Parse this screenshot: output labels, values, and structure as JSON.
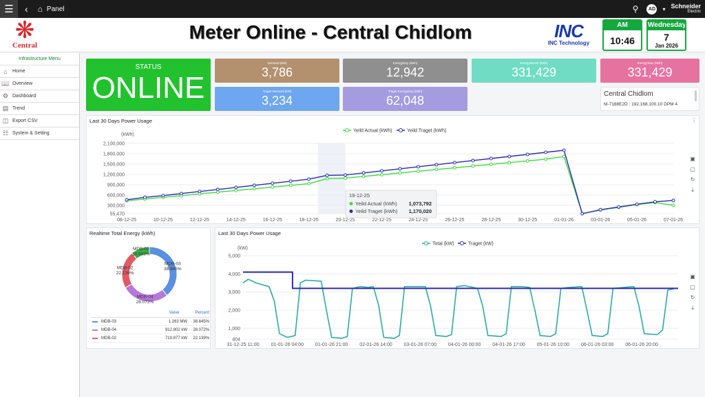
{
  "topbar": {
    "menu_icon": "hamburger-icon",
    "back_icon": "chevron-left-icon",
    "home_icon": "home-icon",
    "panel_label": "Panel",
    "avatar": "AD",
    "brand_line1": "Schneider",
    "brand_line2": "Electric"
  },
  "header": {
    "logo_text": "Central",
    "title": "Meter Online - Central Chidlom",
    "inc_logo": "INC",
    "inc_text": "INC Technology",
    "time": {
      "period": "AM",
      "value": "10:46"
    },
    "date": {
      "weekday": "Wednesday",
      "day": "7",
      "month_year": "Jan 2026"
    }
  },
  "sidebar": {
    "title": "Infrastructure Menu",
    "items": [
      {
        "label": "Home",
        "icon": "home-icon"
      },
      {
        "label": "Overview",
        "icon": "book-icon"
      },
      {
        "label": "Dashboard",
        "icon": "dashboard-icon"
      },
      {
        "label": "Trend",
        "icon": "trend-icon"
      },
      {
        "label": "Export CSV",
        "icon": "file-icon"
      },
      {
        "label": "System & Setting",
        "icon": "network-icon"
      }
    ]
  },
  "status": {
    "label": "STATUS",
    "value": "ONLINE",
    "color": "#22c22e"
  },
  "kpis": [
    {
      "label": "Demand (kW)",
      "value": "3,786",
      "color": "#b3916f"
    },
    {
      "label": "EnergyDay (kWh)",
      "value": "12,942",
      "color": "#8f8f8f"
    },
    {
      "label": "EnergyMonth (kWh)",
      "value": "331,429",
      "color": "#6fdcc3"
    },
    {
      "label": "EnergyYear (kWh)",
      "value": "331,429",
      "color": "#e6739f"
    },
    {
      "label": "Traget Demand (kW)",
      "value": "3,234",
      "color": "#6ea6ef"
    },
    {
      "label": "Traget EnergyDay (kWh)",
      "value": "62,048",
      "color": "#a59be0"
    }
  ],
  "info": {
    "title": "Central Chidlom",
    "subtitle": "M-7188E2D : 192.168.100.10 DPM 4"
  },
  "chart1": {
    "title": "Last 30 Days Power Usage"
  },
  "chart2": {
    "title": "Realtime Total Energy (kWh)",
    "table": {
      "header_value": "Value",
      "header_percent": "Percent",
      "rows": [
        {
          "name": "MDB-03",
          "value": "1.263 MW",
          "percent": "38.845%",
          "color": "#5b8fdf"
        },
        {
          "name": "MDB-04",
          "value": "912.802 kW",
          "percent": "28.072%",
          "color": "#b679d9"
        },
        {
          "name": "MDB-02",
          "value": "719.877 kW",
          "percent": "22.139%",
          "color": "#e05a65"
        }
      ]
    }
  },
  "chart3": {
    "title": "Last 30 Days Power Usage"
  },
  "chart_data": [
    {
      "type": "line",
      "title": "",
      "ylabel": "(kWh)",
      "ylim": [
        55470,
        2100000
      ],
      "ytick_labels": [
        "55,470",
        "300,000",
        "600,000",
        "900,000",
        "1,200,000",
        "1,500,000",
        "1,800,000",
        "2,100,000"
      ],
      "ytick_values": [
        55470,
        300000,
        600000,
        900000,
        1200000,
        1500000,
        1800000,
        2100000
      ],
      "x": [
        "08-12-25",
        "09-12-25",
        "10-12-25",
        "11-12-25",
        "12-12-25",
        "13-12-25",
        "14-12-25",
        "15-12-25",
        "16-12-25",
        "17-12-25",
        "18-12-25",
        "19-12-25",
        "20-12-25",
        "21-12-25",
        "22-12-25",
        "23-12-25",
        "24-12-25",
        "25-12-25",
        "26-12-25",
        "27-12-25",
        "28-12-25",
        "29-12-25",
        "30-12-25",
        "31-12-25",
        "01-01-26",
        "02-01-26",
        "03-01-26",
        "04-01-26",
        "05-01-26",
        "06-01-26",
        "07-01-26"
      ],
      "xtick_labels": [
        "08-12-25",
        "10-12-25",
        "12-12-25",
        "14-12-25",
        "16-12-25",
        "18-12-25",
        "20-12-25",
        "22-12-25",
        "24-12-25",
        "26-12-25",
        "28-12-25",
        "30-12-25",
        "01-01-26",
        "03-01-26",
        "05-01-26",
        "07-01-26"
      ],
      "series": [
        {
          "name": "Yeild Actual (kWh)",
          "color": "#3ddc3d",
          "values": [
            430000,
            480000,
            530000,
            580000,
            630000,
            680000,
            730000,
            780000,
            830000,
            880000,
            930000,
            1073792,
            1090000,
            1140000,
            1190000,
            1240000,
            1290000,
            1340000,
            1390000,
            1440000,
            1490000,
            1540000,
            1590000,
            1640000,
            1720000,
            55470,
            160000,
            240000,
            320000,
            380000,
            300000
          ]
        },
        {
          "name": "Yeild Traget (kWh)",
          "color": "#2b2bb0",
          "values": [
            460000,
            530000,
            580000,
            640000,
            700000,
            760000,
            820000,
            880000,
            940000,
            1000000,
            1060000,
            1170020,
            1180000,
            1240000,
            1300000,
            1360000,
            1420000,
            1480000,
            1540000,
            1600000,
            1660000,
            1720000,
            1780000,
            1840000,
            1900000,
            55470,
            170000,
            250000,
            330000,
            400000,
            440000
          ]
        }
      ],
      "tooltip": {
        "date": "19-12-25",
        "rows": [
          {
            "name": "Yeild Actual (kWh)",
            "value": "1,073,792"
          },
          {
            "name": "Yeild Traget (kWh)",
            "value": "1,170,020"
          }
        ]
      },
      "legend": "top-center",
      "grid": true
    },
    {
      "type": "pie",
      "title": "",
      "slices": [
        {
          "label": "MDB-03",
          "percent": 38.845,
          "color": "#5b8fdf"
        },
        {
          "label": "MDB-04",
          "percent": 28.072,
          "color": "#b679d9"
        },
        {
          "label": "MDB-02",
          "percent": 22.139,
          "color": "#e05a65"
        },
        {
          "label": "MDB-01",
          "percent": 10.943,
          "color": "#3aae44"
        }
      ],
      "slice_labels": [
        {
          "name": "MDB-01",
          "pct": "10.943%"
        },
        {
          "name": "MDB-02",
          "pct": "22.139%"
        },
        {
          "name": "MDB-03",
          "pct": "38.845%"
        },
        {
          "name": "MDB-04",
          "pct": "28.072%"
        }
      ],
      "donut": true
    },
    {
      "type": "line",
      "title": "",
      "ylabel": "(kW)",
      "ylim": [
        404,
        5000
      ],
      "ytick_labels": [
        "404",
        "1,000",
        "2,000",
        "3,000",
        "4,000",
        "5,000"
      ],
      "ytick_values": [
        404,
        1000,
        2000,
        3000,
        4000,
        5000
      ],
      "xtick_labels": [
        "31-12-25 11:00",
        "01-01-26 04:00",
        "01-01-26 21:00",
        "02-01-26 14:00",
        "03-01-26 07:00",
        "04-01-26 00:00",
        "04-01-26 17:00",
        "05-01-26 10:00",
        "06-01-26 03:00",
        "06-01-26 20:00"
      ],
      "x_hours": [
        0,
        17,
        34,
        51,
        68,
        85,
        102,
        119,
        136,
        153
      ],
      "x_max_hours": 167,
      "series": [
        {
          "name": "Total (kW)",
          "color": "#2aa9a4",
          "points": [
            [
              0,
              3500
            ],
            [
              2,
              3700
            ],
            [
              5,
              3500
            ],
            [
              10,
              3300
            ],
            [
              12,
              2500
            ],
            [
              14,
              700
            ],
            [
              17,
              500
            ],
            [
              20,
              600
            ],
            [
              22,
              3500
            ],
            [
              24,
              3650
            ],
            [
              30,
              3600
            ],
            [
              32,
              2000
            ],
            [
              34,
              500
            ],
            [
              38,
              450
            ],
            [
              40,
              550
            ],
            [
              42,
              3200
            ],
            [
              45,
              3300
            ],
            [
              48,
              3250
            ],
            [
              50,
              3300
            ],
            [
              52,
              2300
            ],
            [
              54,
              500
            ],
            [
              58,
              450
            ],
            [
              60,
              600
            ],
            [
              62,
              3300
            ],
            [
              66,
              3300
            ],
            [
              70,
              3300
            ],
            [
              72,
              2200
            ],
            [
              74,
              600
            ],
            [
              78,
              550
            ],
            [
              80,
              650
            ],
            [
              82,
              3300
            ],
            [
              85,
              3350
            ],
            [
              90,
              3200
            ],
            [
              92,
              2200
            ],
            [
              94,
              600
            ],
            [
              99,
              550
            ],
            [
              101,
              700
            ],
            [
              103,
              3300
            ],
            [
              107,
              3300
            ],
            [
              110,
              3250
            ],
            [
              112,
              2000
            ],
            [
              114,
              600
            ],
            [
              118,
              550
            ],
            [
              120,
              700
            ],
            [
              122,
              3200
            ],
            [
              125,
              3250
            ],
            [
              130,
              3300
            ],
            [
              132,
              2000
            ],
            [
              134,
              600
            ],
            [
              138,
              550
            ],
            [
              140,
              700
            ],
            [
              142,
              3200
            ],
            [
              146,
              3250
            ],
            [
              150,
              3300
            ],
            [
              152,
              2200
            ],
            [
              154,
              700
            ],
            [
              159,
              650
            ],
            [
              161,
              900
            ],
            [
              163,
              3100
            ],
            [
              166,
              3200
            ]
          ]
        },
        {
          "name": "Traget (kW)",
          "color": "#2b2bb0",
          "points": [
            [
              0,
              4100
            ],
            [
              19,
              4100
            ],
            [
              19,
              3200
            ],
            [
              167,
              3200
            ]
          ]
        }
      ],
      "legend": "top-center",
      "grid": true
    }
  ]
}
